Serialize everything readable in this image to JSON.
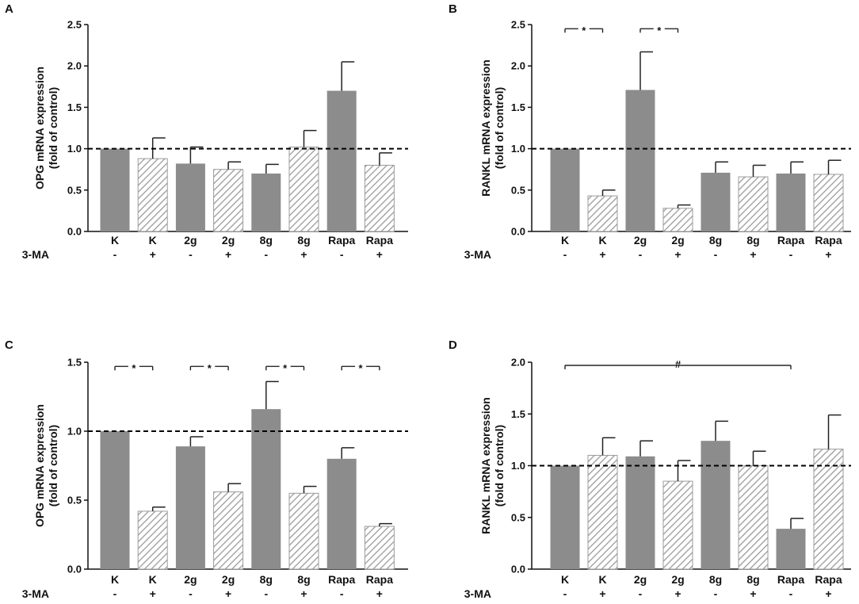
{
  "colors": {
    "solid": "#8c8c8c",
    "hatch": "#9b9b9b",
    "axis": "#111111",
    "refline": "#000000"
  },
  "chart_data": [
    {
      "type": "bar",
      "panel": "A",
      "ylabel": [
        "OPG mRNA expression",
        "(fold of control)"
      ],
      "ylim": [
        0,
        2.5
      ],
      "yticks": [
        "0.0",
        "0.5",
        "1.0",
        "1.5",
        "2.0",
        "2.5"
      ],
      "reference_line": 1.0,
      "categories": [
        "K",
        "K",
        "2g",
        "2g",
        "8g",
        "8g",
        "Rapa",
        "Rapa"
      ],
      "treatment_label": "3-MA",
      "treatment": [
        "-",
        "+",
        "-",
        "+",
        "-",
        "+",
        "-",
        "+"
      ],
      "values": [
        1.0,
        0.88,
        0.82,
        0.75,
        0.7,
        1.02,
        1.7,
        0.8
      ],
      "errors": [
        0.0,
        0.25,
        0.2,
        0.09,
        0.11,
        0.2,
        0.35,
        0.15
      ],
      "annotations": []
    },
    {
      "type": "bar",
      "panel": "B",
      "ylabel": [
        "RANKL mRNA expression",
        "(fold of control)"
      ],
      "ylim": [
        0,
        2.5
      ],
      "yticks": [
        "0.0",
        "0.5",
        "1.0",
        "1.5",
        "2.0",
        "2.5"
      ],
      "reference_line": 1.0,
      "categories": [
        "K",
        "K",
        "2g",
        "2g",
        "8g",
        "8g",
        "Rapa",
        "Rapa"
      ],
      "treatment_label": "3-MA",
      "treatment": [
        "-",
        "+",
        "-",
        "+",
        "-",
        "+",
        "-",
        "+"
      ],
      "values": [
        1.0,
        0.43,
        1.71,
        0.28,
        0.71,
        0.66,
        0.7,
        0.69
      ],
      "errors": [
        0.0,
        0.07,
        0.46,
        0.04,
        0.13,
        0.14,
        0.14,
        0.17
      ],
      "annotations": [
        {
          "from": 0,
          "to": 1,
          "y": 2.45,
          "text": "*"
        },
        {
          "from": 2,
          "to": 3,
          "y": 2.45,
          "text": "*"
        }
      ]
    },
    {
      "type": "bar",
      "panel": "C",
      "ylabel": [
        "OPG mRNA expression",
        "(fold of control)"
      ],
      "ylim": [
        0,
        1.5
      ],
      "yticks": [
        "0.0",
        "0.5",
        "1.0",
        "1.5"
      ],
      "reference_line": 1.0,
      "categories": [
        "K",
        "K",
        "2g",
        "2g",
        "8g",
        "8g",
        "Rapa",
        "Rapa"
      ],
      "treatment_label": "3-MA",
      "treatment": [
        "-",
        "+",
        "-",
        "+",
        "-",
        "+",
        "-",
        "+"
      ],
      "values": [
        1.0,
        0.42,
        0.89,
        0.56,
        1.16,
        0.55,
        0.8,
        0.31
      ],
      "errors": [
        0.0,
        0.03,
        0.07,
        0.06,
        0.2,
        0.05,
        0.08,
        0.02
      ],
      "annotations": [
        {
          "from": 0,
          "to": 1,
          "y": 1.47,
          "text": "*"
        },
        {
          "from": 2,
          "to": 3,
          "y": 1.47,
          "text": "*"
        },
        {
          "from": 4,
          "to": 5,
          "y": 1.47,
          "text": "*"
        },
        {
          "from": 6,
          "to": 7,
          "y": 1.47,
          "text": "*"
        }
      ]
    },
    {
      "type": "bar",
      "panel": "D",
      "ylabel": [
        "RANKL mRNA expression",
        "(fold of control)"
      ],
      "ylim": [
        0,
        2.0
      ],
      "yticks": [
        "0.0",
        "0.5",
        "1.0",
        "1.5",
        "2.0"
      ],
      "reference_line": 1.0,
      "categories": [
        "K",
        "K",
        "2g",
        "2g",
        "8g",
        "8g",
        "Rapa",
        "Rapa"
      ],
      "treatment_label": "3-MA",
      "treatment": [
        "-",
        "+",
        "-",
        "+",
        "-",
        "+",
        "-",
        "+"
      ],
      "values": [
        1.0,
        1.1,
        1.09,
        0.85,
        1.24,
        1.0,
        0.39,
        1.16
      ],
      "errors": [
        0.0,
        0.17,
        0.15,
        0.2,
        0.19,
        0.14,
        0.1,
        0.33
      ],
      "annotations": [
        {
          "from": 0,
          "to": 6,
          "y": 1.97,
          "text": "#"
        }
      ]
    }
  ]
}
